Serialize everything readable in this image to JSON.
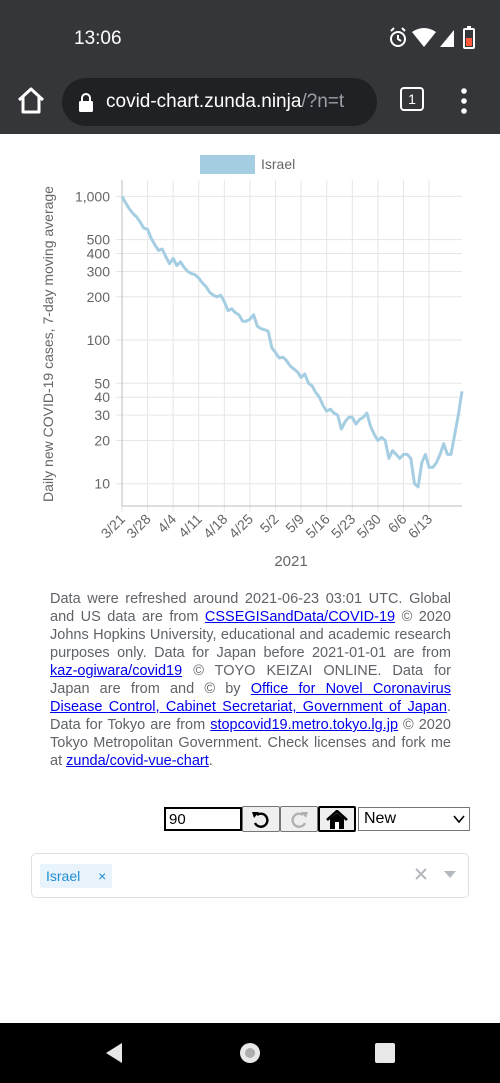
{
  "status": {
    "time": "13:06",
    "icons": [
      "alarm-icon",
      "wifi-icon",
      "signal-icon",
      "battery-icon"
    ]
  },
  "browser": {
    "url_host": "covid-chart.zunda.ninja",
    "url_rest": "/?n=t",
    "tab_count": "1"
  },
  "chart_data": {
    "type": "line",
    "title": "",
    "xlabel": "2021",
    "ylabel": "Daily new COVID-19 cases, 7-day moving average",
    "yscale": "log",
    "ylim": [
      7,
      1300
    ],
    "yticks": [
      10,
      20,
      30,
      40,
      50,
      100,
      200,
      300,
      400,
      500,
      1000
    ],
    "ytick_labels": [
      "10",
      "20",
      "30",
      "40",
      "50",
      "100",
      "200",
      "300",
      "400",
      "500",
      "1,000"
    ],
    "x_tick_labels": [
      "3/21",
      "3/28",
      "4/4",
      "4/11",
      "4/18",
      "4/25",
      "5/2",
      "5/9",
      "5/16",
      "5/23",
      "5/30",
      "6/6",
      "6/13"
    ],
    "legend": {
      "position": "top-center"
    },
    "grid": true,
    "series": [
      {
        "name": "Israel",
        "color": "#a6cee3",
        "x": [
          "3/21",
          "3/22",
          "3/23",
          "3/24",
          "3/25",
          "3/26",
          "3/27",
          "3/28",
          "3/29",
          "3/30",
          "3/31",
          "4/1",
          "4/2",
          "4/3",
          "4/4",
          "4/5",
          "4/6",
          "4/7",
          "4/8",
          "4/9",
          "4/10",
          "4/11",
          "4/12",
          "4/13",
          "4/14",
          "4/15",
          "4/16",
          "4/17",
          "4/18",
          "4/19",
          "4/20",
          "4/21",
          "4/22",
          "4/23",
          "4/24",
          "4/25",
          "4/26",
          "4/27",
          "4/28",
          "4/29",
          "4/30",
          "5/1",
          "5/2",
          "5/3",
          "5/4",
          "5/5",
          "5/6",
          "5/7",
          "5/8",
          "5/9",
          "5/10",
          "5/11",
          "5/12",
          "5/13",
          "5/14",
          "5/15",
          "5/16",
          "5/17",
          "5/18",
          "5/19",
          "5/20",
          "5/21",
          "5/22",
          "5/23",
          "5/24",
          "5/25",
          "5/26",
          "5/27",
          "5/28",
          "5/29",
          "5/30",
          "5/31",
          "6/1",
          "6/2",
          "6/3",
          "6/4",
          "6/5",
          "6/6",
          "6/7",
          "6/8",
          "6/9",
          "6/10",
          "6/11",
          "6/12",
          "6/13",
          "6/14",
          "6/15",
          "6/16",
          "6/17",
          "6/18",
          "6/19",
          "6/20",
          "6/21",
          "6/22"
        ],
        "values": [
          1000,
          900,
          820,
          760,
          720,
          660,
          600,
          590,
          510,
          460,
          420,
          430,
          380,
          340,
          370,
          330,
          350,
          320,
          300,
          290,
          285,
          270,
          250,
          235,
          215,
          205,
          200,
          205,
          185,
          160,
          165,
          155,
          150,
          135,
          135,
          140,
          150,
          125,
          120,
          118,
          115,
          88,
          82,
          75,
          76,
          72,
          66,
          63,
          60,
          55,
          58,
          50,
          48,
          43,
          40,
          35,
          32,
          33,
          31,
          30,
          24,
          27,
          29,
          29,
          26,
          28,
          29,
          31,
          25,
          22,
          20,
          21,
          20,
          15,
          17,
          16,
          15,
          16,
          16,
          15,
          10,
          9.5,
          14,
          16,
          13,
          13,
          14,
          16,
          19,
          16,
          16,
          22,
          30,
          44
        ]
      }
    ]
  },
  "notes": {
    "t1": "Data were refreshed around 2021-06-23 03:01 UTC. Global and US data are from ",
    "l1": "CSSEGISandData/COVID-19",
    "t2": " © 2020 Johns Hopkins University, educational and academic research purposes only. Data for Japan before 2021-01-01 are from ",
    "l2": "kaz-ogiwara/covid19",
    "t3": " © TOYO KEIZAI ONLINE. Data for Japan are from and © by ",
    "l3": "Office for Novel Coronavirus Disease Control, Cabinet Secretariat, Government of Japan",
    "t4": ". Data for Tokyo are from ",
    "l4": "stopcovid19.metro.tokyo.lg.jp",
    "t5": " © 2020 Tokyo Metropolitan Government. Check licenses and fork me at ",
    "l5": "zunda/covid-vue-chart",
    "t6": "."
  },
  "controls": {
    "days_value": "90",
    "mode_value": "New",
    "icons": [
      "undo-icon",
      "redo-icon",
      "home-icon"
    ]
  },
  "countries": {
    "selected": [
      "Israel"
    ],
    "tag_close": "×"
  }
}
